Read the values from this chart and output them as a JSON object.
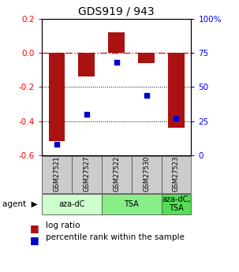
{
  "title": "GDS919 / 943",
  "samples": [
    "GSM27521",
    "GSM27527",
    "GSM27522",
    "GSM27530",
    "GSM27523"
  ],
  "log_ratios": [
    -0.52,
    -0.14,
    0.12,
    -0.06,
    -0.44
  ],
  "percentile_ranks": [
    8,
    30,
    68,
    44,
    27
  ],
  "groups": [
    {
      "label": "aza-dC",
      "span": [
        0,
        2
      ],
      "color": "#ccffcc"
    },
    {
      "label": "TSA",
      "span": [
        2,
        4
      ],
      "color": "#88ee88"
    },
    {
      "label": "aza-dC,\nTSA",
      "span": [
        4,
        5
      ],
      "color": "#55dd55"
    }
  ],
  "ylim_left": [
    -0.6,
    0.2
  ],
  "ylim_right": [
    0,
    100
  ],
  "bar_color": "#aa1111",
  "dot_color": "#0000cc",
  "bar_width": 0.55,
  "yticks_left": [
    0.2,
    0.0,
    -0.2,
    -0.4,
    -0.6
  ],
  "yticks_right": [
    100,
    75,
    50,
    25,
    0
  ],
  "sample_box_color": "#cccccc",
  "legend_bar_color": "#aa1111",
  "legend_dot_color": "#0000cc"
}
